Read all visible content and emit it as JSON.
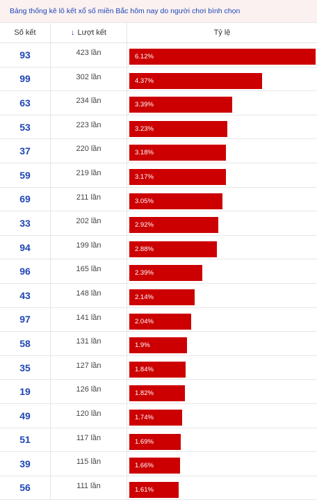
{
  "caption": "Bảng thống kê lô kết xổ số miền Bắc hôm nay do người chơi bình chọn",
  "headers": {
    "number": "Số kết",
    "count": "Lượt kết",
    "ratio": "Tỷ lệ"
  },
  "sort_icon": "arrow-down-icon",
  "bar_color": "#cc0000",
  "number_color": "#1e46b4",
  "rows": [
    {
      "number": "93",
      "count": "423 lần",
      "pct_label": "6.12%",
      "pct": 6.12
    },
    {
      "number": "99",
      "count": "302 lần",
      "pct_label": "4.37%",
      "pct": 4.37
    },
    {
      "number": "63",
      "count": "234 lần",
      "pct_label": "3.39%",
      "pct": 3.39
    },
    {
      "number": "53",
      "count": "223 lần",
      "pct_label": "3.23%",
      "pct": 3.23
    },
    {
      "number": "37",
      "count": "220 lần",
      "pct_label": "3.18%",
      "pct": 3.18
    },
    {
      "number": "59",
      "count": "219 lần",
      "pct_label": "3.17%",
      "pct": 3.17
    },
    {
      "number": "69",
      "count": "211 lần",
      "pct_label": "3.05%",
      "pct": 3.05
    },
    {
      "number": "33",
      "count": "202 lần",
      "pct_label": "2.92%",
      "pct": 2.92
    },
    {
      "number": "94",
      "count": "199 lần",
      "pct_label": "2.88%",
      "pct": 2.88
    },
    {
      "number": "96",
      "count": "165 lần",
      "pct_label": "2.39%",
      "pct": 2.39
    },
    {
      "number": "43",
      "count": "148 lần",
      "pct_label": "2.14%",
      "pct": 2.14
    },
    {
      "number": "97",
      "count": "141 lần",
      "pct_label": "2.04%",
      "pct": 2.04
    },
    {
      "number": "58",
      "count": "131 lần",
      "pct_label": "1.9%",
      "pct": 1.9
    },
    {
      "number": "35",
      "count": "127 lần",
      "pct_label": "1.84%",
      "pct": 1.84
    },
    {
      "number": "19",
      "count": "126 lần",
      "pct_label": "1.82%",
      "pct": 1.82
    },
    {
      "number": "49",
      "count": "120 lần",
      "pct_label": "1.74%",
      "pct": 1.74
    },
    {
      "number": "51",
      "count": "117 lần",
      "pct_label": "1.69%",
      "pct": 1.69
    },
    {
      "number": "39",
      "count": "115 lần",
      "pct_label": "1.66%",
      "pct": 1.66
    },
    {
      "number": "56",
      "count": "111 lần",
      "pct_label": "1.61%",
      "pct": 1.61
    }
  ]
}
